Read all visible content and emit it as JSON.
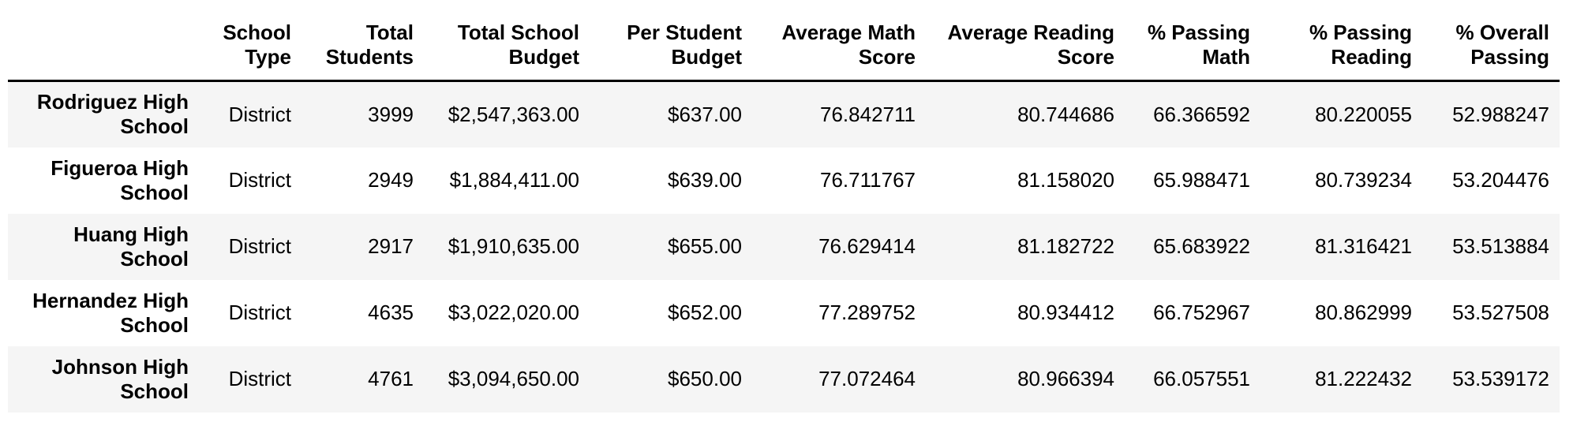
{
  "chart_data": {
    "type": "table",
    "title": "",
    "corner_label": "",
    "columns": [
      "School Type",
      "Total Students",
      "Total School Budget",
      "Per Student Budget",
      "Average Math Score",
      "Average Reading Score",
      "% Passing Math",
      "% Passing Reading",
      "% Overall Passing"
    ],
    "rows": [
      {
        "index": "Rodriguez High School",
        "values": [
          "District",
          "3999",
          "$2,547,363.00",
          "$637.00",
          "76.842711",
          "80.744686",
          "66.366592",
          "80.220055",
          "52.988247"
        ]
      },
      {
        "index": "Figueroa High School",
        "values": [
          "District",
          "2949",
          "$1,884,411.00",
          "$639.00",
          "76.711767",
          "81.158020",
          "65.988471",
          "80.739234",
          "53.204476"
        ]
      },
      {
        "index": "Huang High School",
        "values": [
          "District",
          "2917",
          "$1,910,635.00",
          "$655.00",
          "76.629414",
          "81.182722",
          "65.683922",
          "81.316421",
          "53.513884"
        ]
      },
      {
        "index": "Hernandez High School",
        "values": [
          "District",
          "4635",
          "$3,022,020.00",
          "$652.00",
          "77.289752",
          "80.934412",
          "66.752967",
          "80.862999",
          "53.527508"
        ]
      },
      {
        "index": "Johnson High School",
        "values": [
          "District",
          "4761",
          "$3,094,650.00",
          "$650.00",
          "77.072464",
          "80.966394",
          "66.057551",
          "81.222432",
          "53.539172"
        ]
      }
    ],
    "layout": {
      "striped_rows": "odd",
      "stripe_color": "#f5f5f5",
      "background_color": "#ffffff",
      "text_color": "#000000",
      "header_border_color": "#000000",
      "text_align": "right",
      "header_lines": 2
    }
  }
}
